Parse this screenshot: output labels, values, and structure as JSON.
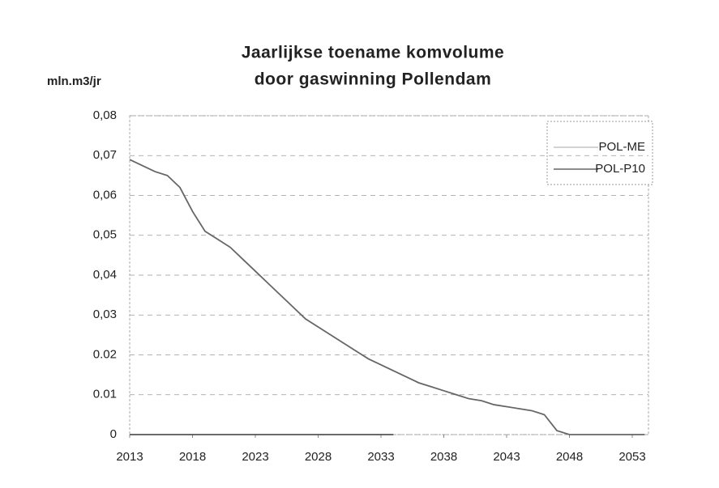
{
  "chart_data": {
    "type": "line",
    "title": [
      "Jaarlijkse toename komvolume",
      "door gaswinning Pollendam"
    ],
    "y_label": "mln.m3/jr",
    "x": [
      2013,
      2014,
      2015,
      2016,
      2017,
      2018,
      2019,
      2020,
      2021,
      2022,
      2023,
      2024,
      2025,
      2026,
      2027,
      2028,
      2029,
      2030,
      2031,
      2032,
      2033,
      2034,
      2035,
      2036,
      2037,
      2038,
      2039,
      2040,
      2041,
      2042,
      2043,
      2044,
      2045,
      2046,
      2047,
      2048,
      2049,
      2050,
      2051,
      2052,
      2053,
      2054
    ],
    "series": [
      {
        "name": "POL-ME",
        "color": "#555555",
        "values": [
          0,
          0,
          0,
          0,
          0,
          0,
          0,
          0,
          0,
          0,
          0,
          0,
          0,
          0,
          0,
          0,
          0,
          0,
          0,
          0,
          0,
          0,
          null,
          null,
          null,
          null,
          null,
          null,
          null,
          null,
          null,
          null,
          null,
          null,
          null,
          null,
          null,
          null,
          null,
          null,
          null,
          null
        ]
      },
      {
        "name": "POL-P10",
        "color": "#666666",
        "values": [
          0.069,
          0.0675,
          0.066,
          0.065,
          0.062,
          0.056,
          0.051,
          0.049,
          0.047,
          0.044,
          0.041,
          0.038,
          0.035,
          0.032,
          0.029,
          0.027,
          0.025,
          0.023,
          0.021,
          0.019,
          0.0175,
          0.016,
          0.0145,
          0.013,
          0.012,
          0.011,
          0.01,
          0.009,
          0.0085,
          0.0075,
          0.007,
          0.0065,
          0.006,
          0.005,
          0.001,
          0,
          0,
          0,
          0,
          0,
          0,
          0
        ]
      }
    ],
    "xlim": [
      2013,
      2054
    ],
    "xticks": [
      2013,
      2018,
      2023,
      2028,
      2033,
      2038,
      2043,
      2048,
      2053
    ],
    "ylim": [
      0,
      0.08
    ],
    "yticks": [
      0,
      {
        "value": 0.01,
        "label": "0.01"
      },
      {
        "value": 0.02,
        "label": "0.02"
      },
      {
        "value": 0.03,
        "label": "0,03"
      },
      {
        "value": 0.04,
        "label": "0,04"
      },
      {
        "value": 0.05,
        "label": "0,05"
      },
      {
        "value": 0.06,
        "label": "0,06"
      },
      {
        "value": 0.07,
        "label": "0,07"
      },
      {
        "value": 0.08,
        "label": "0,08"
      }
    ],
    "grid": true,
    "legend": "top-right"
  }
}
